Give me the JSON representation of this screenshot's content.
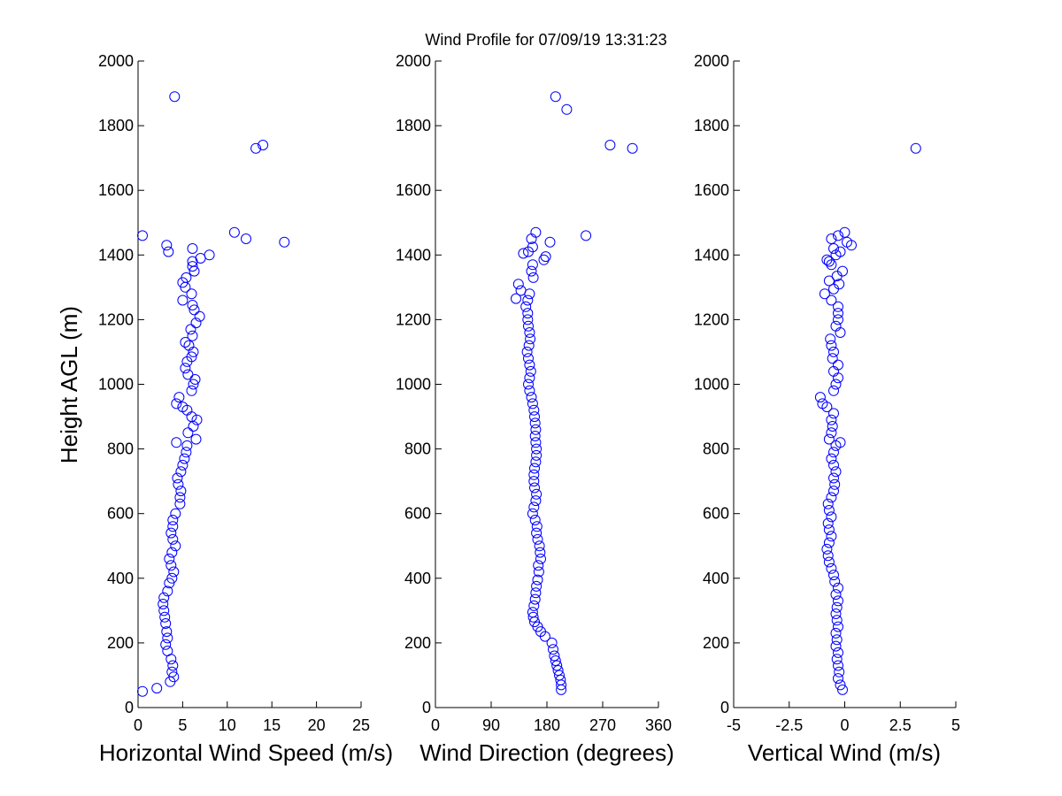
{
  "chart_data": {
    "title": "Wind Profile for  07/09/19 13:31:23",
    "ylabel": "Height AGL (m)",
    "panels": [
      {
        "type": "scatter",
        "xlabel": "Horizontal Wind Speed (m/s)",
        "xlim": [
          0,
          25
        ],
        "xticks": [
          0,
          5,
          10,
          15,
          20,
          25
        ],
        "xtick_labels": [
          "0",
          "5",
          "10",
          "15",
          "20",
          "25"
        ],
        "ylim": [
          0,
          2000
        ],
        "yticks": [
          0,
          200,
          400,
          600,
          800,
          1000,
          1200,
          1400,
          1600,
          1800,
          2000
        ],
        "points": [
          [
            0.5,
            50
          ],
          [
            2.1,
            60
          ],
          [
            3.6,
            80
          ],
          [
            4.0,
            95
          ],
          [
            3.8,
            110
          ],
          [
            3.9,
            130
          ],
          [
            3.7,
            150
          ],
          [
            3.3,
            175
          ],
          [
            3.1,
            195
          ],
          [
            3.3,
            215
          ],
          [
            3.2,
            235
          ],
          [
            3.1,
            260
          ],
          [
            3.0,
            280
          ],
          [
            2.9,
            300
          ],
          [
            2.8,
            320
          ],
          [
            2.9,
            340
          ],
          [
            3.3,
            360
          ],
          [
            3.5,
            385
          ],
          [
            3.8,
            400
          ],
          [
            4.0,
            420
          ],
          [
            3.7,
            440
          ],
          [
            3.5,
            460
          ],
          [
            3.8,
            480
          ],
          [
            4.2,
            500
          ],
          [
            3.9,
            520
          ],
          [
            3.7,
            540
          ],
          [
            3.9,
            560
          ],
          [
            3.9,
            580
          ],
          [
            4.2,
            600
          ],
          [
            4.7,
            630
          ],
          [
            4.7,
            650
          ],
          [
            4.8,
            670
          ],
          [
            4.5,
            690
          ],
          [
            4.4,
            710
          ],
          [
            4.8,
            730
          ],
          [
            5.0,
            750
          ],
          [
            5.2,
            770
          ],
          [
            5.4,
            790
          ],
          [
            5.5,
            810
          ],
          [
            4.3,
            820
          ],
          [
            6.5,
            830
          ],
          [
            5.6,
            850
          ],
          [
            6.2,
            870
          ],
          [
            6.6,
            890
          ],
          [
            6.0,
            900
          ],
          [
            5.5,
            920
          ],
          [
            5.0,
            930
          ],
          [
            4.3,
            940
          ],
          [
            4.6,
            960
          ],
          [
            6.0,
            980
          ],
          [
            6.2,
            1000
          ],
          [
            6.4,
            1015
          ],
          [
            5.6,
            1030
          ],
          [
            5.3,
            1050
          ],
          [
            5.5,
            1070
          ],
          [
            6.0,
            1085
          ],
          [
            6.2,
            1100
          ],
          [
            5.7,
            1120
          ],
          [
            5.3,
            1130
          ],
          [
            6.1,
            1150
          ],
          [
            5.9,
            1170
          ],
          [
            6.5,
            1190
          ],
          [
            6.9,
            1210
          ],
          [
            6.3,
            1230
          ],
          [
            6.1,
            1245
          ],
          [
            5.0,
            1260
          ],
          [
            6.0,
            1280
          ],
          [
            5.3,
            1300
          ],
          [
            5.0,
            1315
          ],
          [
            5.4,
            1330
          ],
          [
            6.3,
            1350
          ],
          [
            6.1,
            1365
          ],
          [
            6.1,
            1380
          ],
          [
            7.0,
            1390
          ],
          [
            8.0,
            1400
          ],
          [
            3.4,
            1410
          ],
          [
            6.1,
            1420
          ],
          [
            3.2,
            1430
          ],
          [
            16.4,
            1440
          ],
          [
            12.1,
            1450
          ],
          [
            0.5,
            1460
          ],
          [
            10.8,
            1470
          ],
          [
            13.2,
            1730
          ],
          [
            14.0,
            1740
          ],
          [
            4.1,
            1890
          ]
        ]
      },
      {
        "type": "scatter",
        "xlabel": "Wind Direction (degrees)",
        "xlim": [
          0,
          360
        ],
        "xticks": [
          0,
          90,
          180,
          270,
          360
        ],
        "xtick_labels": [
          "0",
          "90",
          "180",
          "270",
          "360"
        ],
        "ylim": [
          0,
          2000
        ],
        "yticks": [
          0,
          200,
          400,
          600,
          800,
          1000,
          1200,
          1400,
          1600,
          1800,
          2000
        ],
        "points": [
          [
            203,
            55
          ],
          [
            203,
            70
          ],
          [
            202,
            85
          ],
          [
            200,
            100
          ],
          [
            198,
            115
          ],
          [
            196,
            130
          ],
          [
            194,
            145
          ],
          [
            192,
            160
          ],
          [
            190,
            180
          ],
          [
            188,
            200
          ],
          [
            177,
            220
          ],
          [
            170,
            235
          ],
          [
            165,
            250
          ],
          [
            160,
            265
          ],
          [
            158,
            280
          ],
          [
            157,
            295
          ],
          [
            159,
            315
          ],
          [
            161,
            335
          ],
          [
            162,
            355
          ],
          [
            163,
            375
          ],
          [
            165,
            395
          ],
          [
            167,
            420
          ],
          [
            166,
            440
          ],
          [
            170,
            460
          ],
          [
            169,
            480
          ],
          [
            168,
            500
          ],
          [
            165,
            520
          ],
          [
            163,
            540
          ],
          [
            164,
            560
          ],
          [
            161,
            580
          ],
          [
            157,
            600
          ],
          [
            159,
            620
          ],
          [
            162,
            640
          ],
          [
            163,
            660
          ],
          [
            160,
            680
          ],
          [
            159,
            700
          ],
          [
            159,
            720
          ],
          [
            160,
            740
          ],
          [
            162,
            760
          ],
          [
            163,
            780
          ],
          [
            163,
            800
          ],
          [
            162,
            820
          ],
          [
            161,
            840
          ],
          [
            162,
            860
          ],
          [
            161,
            880
          ],
          [
            160,
            900
          ],
          [
            159,
            920
          ],
          [
            157,
            940
          ],
          [
            155,
            960
          ],
          [
            152,
            980
          ],
          [
            150,
            1000
          ],
          [
            152,
            1020
          ],
          [
            154,
            1040
          ],
          [
            152,
            1060
          ],
          [
            150,
            1080
          ],
          [
            148,
            1100
          ],
          [
            151,
            1120
          ],
          [
            153,
            1140
          ],
          [
            152,
            1160
          ],
          [
            150,
            1180
          ],
          [
            149,
            1200
          ],
          [
            149,
            1220
          ],
          [
            146,
            1240
          ],
          [
            149,
            1260
          ],
          [
            130,
            1265
          ],
          [
            152,
            1280
          ],
          [
            138,
            1290
          ],
          [
            134,
            1310
          ],
          [
            158,
            1330
          ],
          [
            155,
            1350
          ],
          [
            157,
            1370
          ],
          [
            175,
            1385
          ],
          [
            178,
            1395
          ],
          [
            150,
            1410
          ],
          [
            142,
            1405
          ],
          [
            157,
            1425
          ],
          [
            185,
            1440
          ],
          [
            155,
            1450
          ],
          [
            243,
            1460
          ],
          [
            162,
            1470
          ],
          [
            318,
            1730
          ],
          [
            282,
            1740
          ],
          [
            212,
            1850
          ],
          [
            194,
            1890
          ]
        ]
      },
      {
        "type": "scatter",
        "xlabel": "Vertical Wind (m/s)",
        "xlim": [
          -5,
          5
        ],
        "xticks": [
          -5,
          -2.5,
          0,
          2.5,
          5
        ],
        "xtick_labels": [
          "-5",
          "-2.5",
          "0",
          "2.5",
          "5"
        ],
        "ylim": [
          0,
          2000
        ],
        "yticks": [
          0,
          200,
          400,
          600,
          800,
          1000,
          1200,
          1400,
          1600,
          1800,
          2000
        ],
        "points": [
          [
            -0.1,
            55
          ],
          [
            -0.2,
            70
          ],
          [
            -0.3,
            90
          ],
          [
            -0.25,
            110
          ],
          [
            -0.3,
            130
          ],
          [
            -0.35,
            150
          ],
          [
            -0.3,
            170
          ],
          [
            -0.4,
            190
          ],
          [
            -0.35,
            210
          ],
          [
            -0.4,
            230
          ],
          [
            -0.3,
            250
          ],
          [
            -0.35,
            270
          ],
          [
            -0.4,
            290
          ],
          [
            -0.35,
            310
          ],
          [
            -0.3,
            330
          ],
          [
            -0.4,
            350
          ],
          [
            -0.3,
            370
          ],
          [
            -0.45,
            390
          ],
          [
            -0.5,
            410
          ],
          [
            -0.6,
            430
          ],
          [
            -0.7,
            450
          ],
          [
            -0.75,
            470
          ],
          [
            -0.8,
            490
          ],
          [
            -0.7,
            510
          ],
          [
            -0.6,
            530
          ],
          [
            -0.7,
            550
          ],
          [
            -0.75,
            570
          ],
          [
            -0.6,
            590
          ],
          [
            -0.7,
            610
          ],
          [
            -0.75,
            630
          ],
          [
            -0.6,
            650
          ],
          [
            -0.5,
            670
          ],
          [
            -0.45,
            690
          ],
          [
            -0.5,
            710
          ],
          [
            -0.4,
            730
          ],
          [
            -0.5,
            750
          ],
          [
            -0.6,
            770
          ],
          [
            -0.5,
            790
          ],
          [
            -0.4,
            810
          ],
          [
            -0.2,
            820
          ],
          [
            -0.7,
            830
          ],
          [
            -0.6,
            850
          ],
          [
            -0.55,
            870
          ],
          [
            -0.6,
            890
          ],
          [
            -0.5,
            910
          ],
          [
            -0.8,
            930
          ],
          [
            -1.0,
            940
          ],
          [
            -1.1,
            960
          ],
          [
            -0.5,
            980
          ],
          [
            -0.4,
            1000
          ],
          [
            -0.3,
            1020
          ],
          [
            -0.5,
            1040
          ],
          [
            -0.3,
            1060
          ],
          [
            -0.55,
            1080
          ],
          [
            -0.5,
            1100
          ],
          [
            -0.6,
            1120
          ],
          [
            -0.65,
            1140
          ],
          [
            -0.2,
            1160
          ],
          [
            -0.4,
            1180
          ],
          [
            -0.3,
            1200
          ],
          [
            -0.3,
            1220
          ],
          [
            -0.3,
            1240
          ],
          [
            -0.6,
            1260
          ],
          [
            -0.9,
            1280
          ],
          [
            -0.5,
            1295
          ],
          [
            -0.25,
            1310
          ],
          [
            -0.7,
            1320
          ],
          [
            -0.35,
            1335
          ],
          [
            -0.1,
            1350
          ],
          [
            -0.6,
            1370
          ],
          [
            -0.7,
            1380
          ],
          [
            -0.8,
            1385
          ],
          [
            -0.4,
            1400
          ],
          [
            -0.2,
            1410
          ],
          [
            -0.5,
            1420
          ],
          [
            0.3,
            1430
          ],
          [
            0.1,
            1440
          ],
          [
            -0.6,
            1450
          ],
          [
            -0.3,
            1460
          ],
          [
            0.0,
            1470
          ],
          [
            3.2,
            1730
          ]
        ]
      }
    ]
  }
}
